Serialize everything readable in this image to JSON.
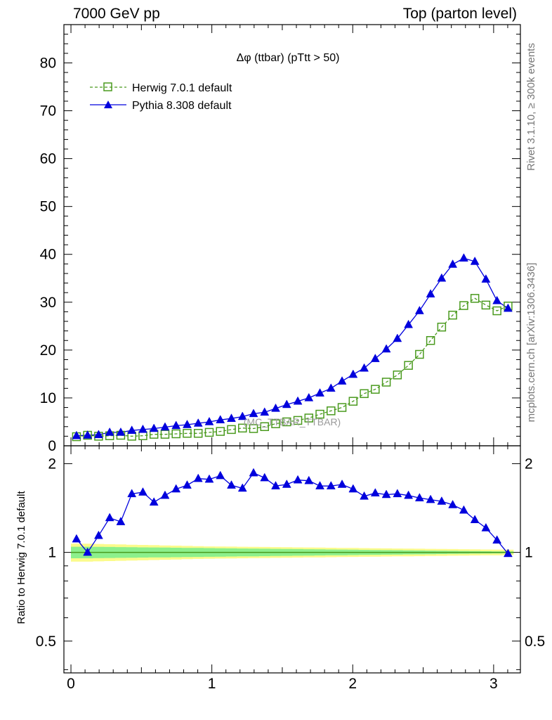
{
  "header": {
    "left": "7000 GeV pp",
    "right": "Top (parton level)"
  },
  "side_labels": {
    "rivet": "Rivet 3.1.10, ≥ 300k events",
    "mcplots": "mcplots.cern.ch [arXiv:1306.3436]"
  },
  "colors": {
    "herwig": "#4a9a1e",
    "pythia": "#0000dd",
    "band_outer": "#fbfb8c",
    "band_inner": "#8cf08c",
    "watermark": "#9a9a9a"
  },
  "chart_data": [
    {
      "type": "line",
      "title": "Δφ (ttbar) (pTtt > 50)",
      "watermark": "(MC_TTBAR_TTBAR)",
      "xlabel": "",
      "ylabel": "",
      "xlim": [
        -0.05,
        3.19
      ],
      "ylim": [
        0,
        88
      ],
      "y_ticks": [
        "0",
        "10",
        "20",
        "30",
        "40",
        "50",
        "60",
        "70",
        "80"
      ],
      "legend_position": "top-left",
      "x": [
        0.0393,
        0.1178,
        0.1963,
        0.2749,
        0.3534,
        0.432,
        0.5105,
        0.589,
        0.6676,
        0.7461,
        0.8247,
        0.9032,
        0.9817,
        1.0603,
        1.1388,
        1.2174,
        1.2959,
        1.3744,
        1.453,
        1.5315,
        1.6101,
        1.6886,
        1.7671,
        1.8457,
        1.9242,
        2.0028,
        2.0813,
        2.1598,
        2.2384,
        2.3169,
        2.3955,
        2.474,
        2.5525,
        2.6311,
        2.7096,
        2.7882,
        2.8667,
        2.9452,
        3.0238,
        3.1023
      ],
      "series": [
        {
          "name": "Herwig 7.0.1 default",
          "marker": "open-square",
          "line": "dashed",
          "values": [
            1.9,
            2.2,
            2.0,
            2.1,
            2.2,
            2.0,
            2.1,
            2.4,
            2.4,
            2.5,
            2.6,
            2.6,
            2.8,
            3.0,
            3.4,
            3.7,
            3.6,
            4.0,
            4.6,
            5.0,
            5.3,
            5.8,
            6.6,
            7.3,
            8.0,
            9.3,
            10.9,
            11.8,
            13.3,
            14.8,
            16.8,
            19.1,
            22.0,
            24.8,
            27.3,
            29.3,
            30.8,
            29.4,
            28.2,
            29.2
          ]
        },
        {
          "name": "Pythia 8.308 default",
          "marker": "filled-triangle",
          "line": "solid",
          "values": [
            2.1,
            2.2,
            2.3,
            2.8,
            2.8,
            3.2,
            3.4,
            3.6,
            3.9,
            4.2,
            4.4,
            4.7,
            5.0,
            5.4,
            5.7,
            6.1,
            6.7,
            7.0,
            7.8,
            8.6,
            9.3,
            10.0,
            11.0,
            12.0,
            13.5,
            14.9,
            16.2,
            18.2,
            20.2,
            22.4,
            25.3,
            28.2,
            31.7,
            35.0,
            37.9,
            39.2,
            38.5,
            34.8,
            30.3,
            28.7
          ]
        }
      ]
    },
    {
      "type": "line",
      "title": "",
      "xlabel": "",
      "ylabel": "Ratio to Herwig 7.0.1 default",
      "xlim": [
        -0.05,
        3.19
      ],
      "ylim": [
        0.39,
        2.3
      ],
      "y_scale": "log",
      "x_ticks": [
        "0",
        "1",
        "2",
        "3"
      ],
      "y_ticks": [
        "0.5",
        "1",
        "2"
      ],
      "reference_line": 1,
      "uncertainty_bands": {
        "outer_halfwidth": [
          0.07,
          0.07,
          0.068,
          0.066,
          0.064,
          0.062,
          0.06,
          0.058,
          0.056,
          0.054,
          0.052,
          0.05,
          0.048,
          0.047,
          0.046,
          0.045,
          0.044,
          0.043,
          0.042,
          0.041,
          0.04,
          0.039,
          0.038,
          0.037,
          0.036,
          0.035,
          0.034,
          0.033,
          0.032,
          0.031,
          0.03,
          0.029,
          0.028,
          0.027,
          0.026,
          0.025,
          0.024,
          0.023,
          0.022,
          0.021
        ],
        "inner_halfwidth": [
          0.045,
          0.045,
          0.044,
          0.043,
          0.042,
          0.041,
          0.04,
          0.039,
          0.038,
          0.037,
          0.036,
          0.035,
          0.034,
          0.033,
          0.032,
          0.031,
          0.03,
          0.029,
          0.028,
          0.027,
          0.026,
          0.025,
          0.024,
          0.023,
          0.022,
          0.021,
          0.02,
          0.019,
          0.018,
          0.017,
          0.016,
          0.015,
          0.014,
          0.013,
          0.012,
          0.011,
          0.01,
          0.009,
          0.008,
          0.007
        ]
      },
      "series": [
        {
          "name": "Herwig 7.0.1 default",
          "values": [
            1,
            1,
            1,
            1,
            1,
            1,
            1,
            1,
            1,
            1,
            1,
            1,
            1,
            1,
            1,
            1,
            1,
            1,
            1,
            1,
            1,
            1,
            1,
            1,
            1,
            1,
            1,
            1,
            1,
            1,
            1,
            1,
            1,
            1,
            1,
            1,
            1,
            1,
            1,
            1
          ]
        },
        {
          "name": "Pythia 8.308 default",
          "values": [
            1.11,
            1.0,
            1.14,
            1.31,
            1.27,
            1.58,
            1.6,
            1.48,
            1.56,
            1.64,
            1.69,
            1.78,
            1.77,
            1.82,
            1.69,
            1.65,
            1.86,
            1.79,
            1.68,
            1.7,
            1.76,
            1.75,
            1.68,
            1.68,
            1.7,
            1.64,
            1.55,
            1.59,
            1.57,
            1.58,
            1.56,
            1.53,
            1.51,
            1.49,
            1.45,
            1.39,
            1.29,
            1.21,
            1.1,
            0.99
          ]
        }
      ]
    }
  ]
}
